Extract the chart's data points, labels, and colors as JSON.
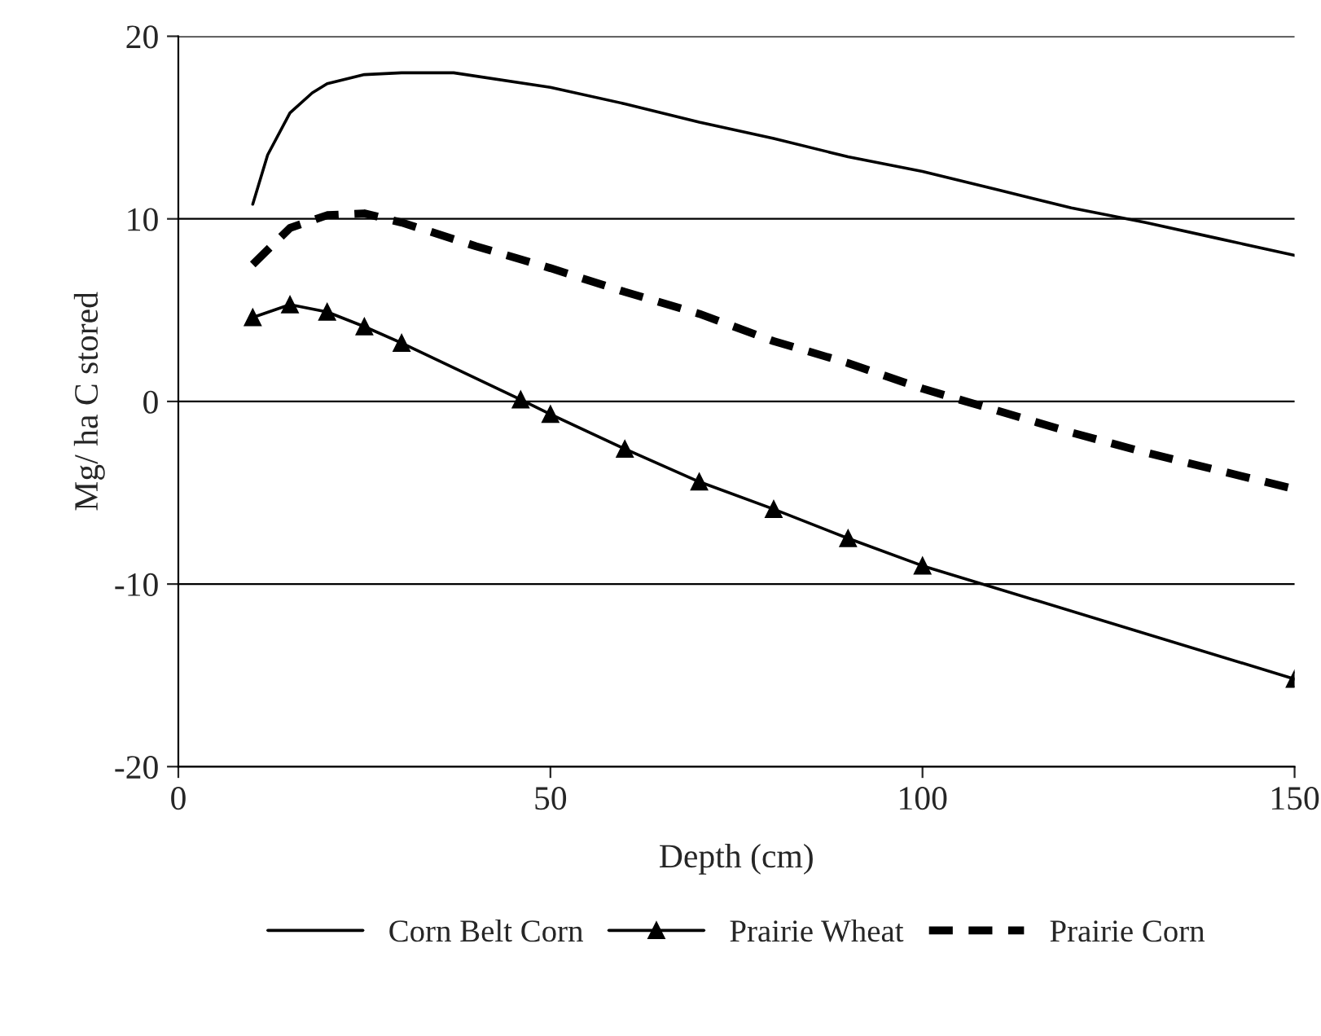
{
  "chart_data": {
    "type": "line",
    "xlabel": "Depth (cm)",
    "ylabel": "Mg/ ha C stored",
    "xlim": [
      0,
      150
    ],
    "xticks": [
      0,
      50,
      100,
      150
    ],
    "ylim": [
      -20,
      20
    ],
    "yticks": [
      -20,
      -10,
      0,
      10,
      20
    ],
    "grid": "y",
    "legend": "bottom",
    "series": [
      {
        "name": "Corn Belt Corn",
        "color": "#000000",
        "line_style": "solid",
        "marker": "none",
        "x": [
          10,
          12,
          15,
          18,
          20,
          25,
          30,
          37,
          50,
          60,
          70,
          80,
          90,
          100,
          110,
          120,
          130,
          140,
          150
        ],
        "values": [
          10.8,
          13.5,
          15.8,
          16.9,
          17.4,
          17.9,
          18.0,
          18.0,
          17.2,
          16.3,
          15.3,
          14.4,
          13.4,
          12.6,
          11.6,
          10.6,
          9.8,
          8.9,
          8.0
        ]
      },
      {
        "name": "Prairie Wheat",
        "color": "#000000",
        "line_style": "solid",
        "marker": "triangle",
        "x": [
          10,
          15,
          20,
          25,
          30,
          46,
          50,
          60,
          70,
          80,
          90,
          100,
          150
        ],
        "values": [
          4.6,
          5.3,
          4.9,
          4.1,
          3.2,
          0.1,
          -0.7,
          -2.6,
          -4.4,
          -5.9,
          -7.5,
          -9.0,
          -15.2
        ]
      },
      {
        "name": "Prairie Corn",
        "color": "#000000",
        "line_style": "dashed",
        "marker": "none",
        "x": [
          10,
          15,
          20,
          25,
          30,
          40,
          50,
          60,
          70,
          80,
          90,
          100,
          110,
          120,
          130,
          140,
          150
        ],
        "values": [
          7.5,
          9.5,
          10.2,
          10.3,
          9.8,
          8.5,
          7.3,
          6.0,
          4.8,
          3.3,
          2.1,
          0.7,
          -0.5,
          -1.7,
          -2.8,
          -3.8,
          -4.8
        ]
      }
    ]
  }
}
